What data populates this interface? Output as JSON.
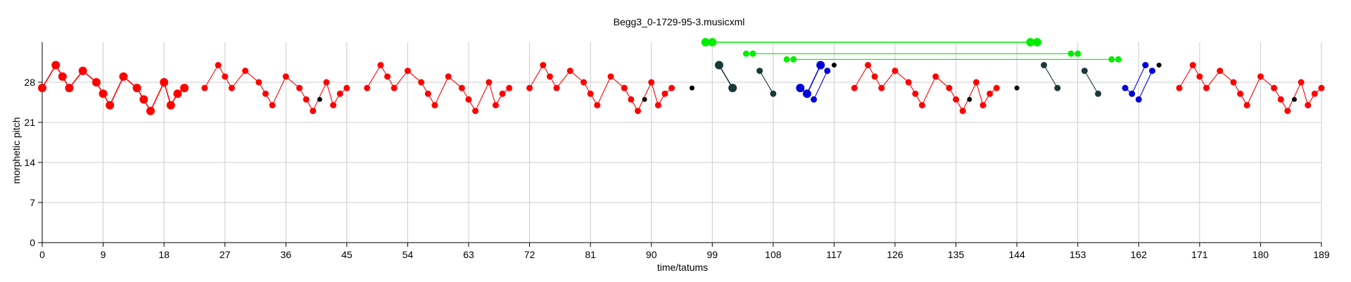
{
  "chart_data": {
    "type": "scatter",
    "title": "Begg3_0-1729-95-3.musicxml",
    "xlabel": "time/tatums",
    "ylabel": "morphetic pitch",
    "xlim": [
      0,
      189
    ],
    "ylim": [
      0,
      35
    ],
    "xticks": [
      0,
      9,
      18,
      27,
      36,
      45,
      54,
      63,
      72,
      81,
      90,
      99,
      108,
      117,
      126,
      135,
      144,
      153,
      162,
      171,
      180,
      189
    ],
    "yticks": [
      0,
      7,
      14,
      21,
      28
    ],
    "grid": true,
    "series": [
      {
        "color": "#ff0000",
        "size": "large",
        "points": [
          [
            0,
            27
          ],
          [
            2,
            31
          ],
          [
            3,
            29
          ],
          [
            4,
            27
          ],
          [
            6,
            30
          ],
          [
            8,
            28
          ],
          [
            9,
            26
          ],
          [
            10,
            24
          ],
          [
            12,
            29
          ],
          [
            14,
            27
          ],
          [
            15,
            25
          ],
          [
            16,
            23
          ],
          [
            18,
            28
          ],
          [
            19,
            24
          ],
          [
            20,
            26
          ],
          [
            21,
            27
          ]
        ]
      },
      {
        "color": "#ff0000",
        "size": "small",
        "segments": [
          [
            [
              24,
              27
            ],
            [
              26,
              31
            ],
            [
              27,
              29
            ],
            [
              28,
              27
            ],
            [
              30,
              30
            ],
            [
              32,
              28
            ],
            [
              33,
              26
            ],
            [
              34,
              24
            ],
            [
              36,
              29
            ],
            [
              38,
              27
            ],
            [
              39,
              25
            ],
            [
              40,
              23
            ],
            [
              42,
              28
            ],
            [
              43,
              24
            ],
            [
              44,
              26
            ],
            [
              45,
              27
            ]
          ],
          [
            [
              48,
              27
            ],
            [
              50,
              31
            ],
            [
              51,
              29
            ],
            [
              52,
              27
            ],
            [
              54,
              30
            ],
            [
              56,
              28
            ],
            [
              57,
              26
            ],
            [
              58,
              24
            ],
            [
              60,
              29
            ],
            [
              62,
              27
            ],
            [
              63,
              25
            ],
            [
              64,
              23
            ],
            [
              66,
              28
            ],
            [
              67,
              24
            ],
            [
              68,
              26
            ],
            [
              69,
              27
            ]
          ],
          [
            [
              72,
              27
            ],
            [
              74,
              31
            ],
            [
              75,
              29
            ],
            [
              76,
              27
            ],
            [
              78,
              30
            ],
            [
              80,
              28
            ],
            [
              81,
              26
            ],
            [
              82,
              24
            ],
            [
              84,
              29
            ],
            [
              86,
              27
            ],
            [
              87,
              25
            ],
            [
              88,
              23
            ],
            [
              90,
              28
            ],
            [
              91,
              24
            ],
            [
              92,
              26
            ],
            [
              93,
              27
            ]
          ],
          [
            [
              120,
              27
            ],
            [
              122,
              31
            ],
            [
              123,
              29
            ],
            [
              124,
              27
            ],
            [
              126,
              30
            ],
            [
              128,
              28
            ],
            [
              129,
              26
            ],
            [
              130,
              24
            ],
            [
              132,
              29
            ],
            [
              134,
              27
            ],
            [
              135,
              25
            ],
            [
              136,
              23
            ],
            [
              138,
              28
            ],
            [
              139,
              24
            ],
            [
              140,
              26
            ],
            [
              141,
              27
            ]
          ],
          [
            [
              168,
              27
            ],
            [
              170,
              31
            ],
            [
              171,
              29
            ],
            [
              172,
              27
            ],
            [
              174,
              30
            ],
            [
              176,
              28
            ],
            [
              177,
              26
            ],
            [
              178,
              24
            ],
            [
              180,
              29
            ],
            [
              182,
              27
            ],
            [
              183,
              25
            ],
            [
              184,
              23
            ],
            [
              186,
              28
            ],
            [
              187,
              24
            ],
            [
              188,
              26
            ],
            [
              189,
              27
            ]
          ]
        ]
      },
      {
        "color": "#000000",
        "size": "tiny",
        "points": [
          [
            41,
            25
          ],
          [
            89,
            25
          ],
          [
            96,
            27
          ],
          [
            117,
            31
          ],
          [
            137,
            25
          ],
          [
            144,
            27
          ],
          [
            165,
            31
          ],
          [
            185,
            25
          ]
        ]
      },
      {
        "color": "#00ee00",
        "size": "large",
        "segments": [
          [
            [
              98,
              35
            ],
            [
              99,
              35
            ],
            [
              146,
              35
            ],
            [
              147,
              35
            ]
          ]
        ]
      },
      {
        "color": "#00ee00",
        "size": "small",
        "segments": [
          [
            [
              104,
              33
            ],
            [
              105,
              33
            ],
            [
              152,
              33
            ],
            [
              153,
              33
            ]
          ],
          [
            [
              110,
              32
            ],
            [
              111,
              32
            ],
            [
              158,
              32
            ],
            [
              159,
              32
            ]
          ]
        ]
      },
      {
        "color": "#1a3a3a",
        "size": "large",
        "segments": [
          [
            [
              100,
              31
            ],
            [
              102,
              27
            ]
          ]
        ]
      },
      {
        "color": "#1a3a3a",
        "size": "small",
        "segments": [
          [
            [
              106,
              30
            ],
            [
              108,
              26
            ]
          ],
          [
            [
              148,
              31
            ],
            [
              150,
              27
            ]
          ],
          [
            [
              154,
              30
            ],
            [
              156,
              26
            ]
          ]
        ]
      },
      {
        "color": "#0000dd",
        "size": "large",
        "segments": [
          [
            [
              112,
              27
            ],
            [
              113,
              26
            ],
            [
              115,
              31
            ]
          ]
        ]
      },
      {
        "color": "#0000dd",
        "size": "small",
        "segments": [
          [
            [
              114,
              25
            ],
            [
              116,
              30
            ]
          ],
          [
            [
              160,
              27
            ],
            [
              161,
              26
            ],
            [
              163,
              31
            ]
          ],
          [
            [
              162,
              25
            ],
            [
              164,
              30
            ]
          ]
        ]
      }
    ]
  }
}
